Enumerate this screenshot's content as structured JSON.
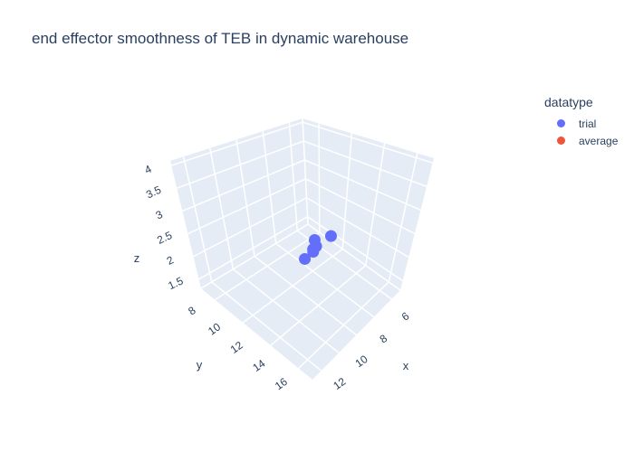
{
  "chart_data": {
    "type": "scatter",
    "title": "end effector smoothness of TEB in dynamic warehouse",
    "xlabel": "x",
    "ylabel": "y",
    "zlabel": "z",
    "legend_title": "datatype",
    "legend_position": "top-right",
    "x_ticks": [
      "6",
      "8",
      "10",
      "12"
    ],
    "y_ticks": [
      "8",
      "10",
      "12",
      "14",
      "16"
    ],
    "z_ticks": [
      "1.5",
      "2",
      "2.5",
      "3",
      "3.5",
      "4"
    ],
    "series": [
      {
        "name": "trial",
        "color": "#636efa",
        "points": [
          {
            "x": 9.0,
            "y": 9.0,
            "z": 2.2
          },
          {
            "x": 9.0,
            "y": 10.5,
            "z": 2.35
          },
          {
            "x": 9.6,
            "y": 11.0,
            "z": 2.4
          },
          {
            "x": 9.8,
            "y": 11.5,
            "z": 2.45
          },
          {
            "x": 10.1,
            "y": 11.8,
            "z": 2.5
          },
          {
            "x": 10.5,
            "y": 13.0,
            "z": 2.6
          }
        ]
      },
      {
        "name": "average",
        "color": "#ef553b",
        "points": [
          {
            "x": 9.7,
            "y": 11.3,
            "z": 2.45
          }
        ]
      }
    ]
  }
}
